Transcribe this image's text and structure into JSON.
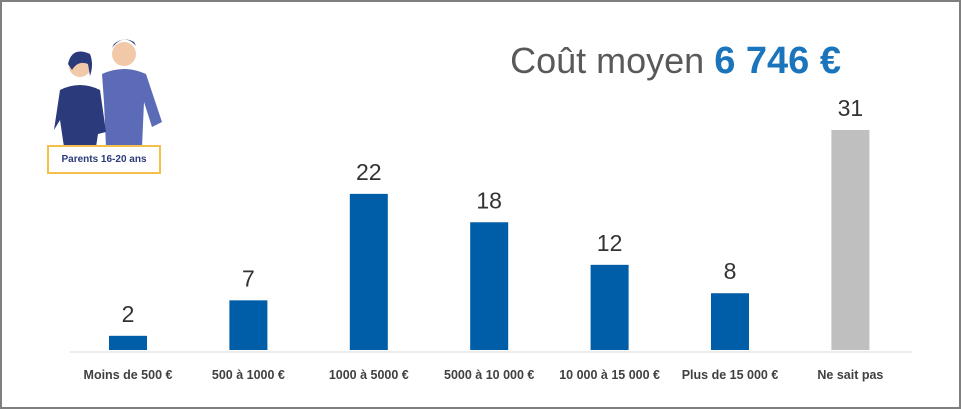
{
  "chart_data": {
    "type": "bar",
    "title": "Coût moyen",
    "title_value": "6 746 €",
    "badge": "Parents 16-20 ans",
    "categories": [
      "Moins de 500 €",
      "500 à 1000 €",
      "1000 à 5000 €",
      "5000 à 10 000 €",
      "10 000 à 15 000 €",
      "Plus de 15 000 €",
      "Ne sait pas"
    ],
    "values": [
      2,
      7,
      22,
      18,
      12,
      8,
      31
    ],
    "colors": [
      "#005ea8",
      "#005ea8",
      "#005ea8",
      "#005ea8",
      "#005ea8",
      "#005ea8",
      "#bfbfbf"
    ]
  }
}
